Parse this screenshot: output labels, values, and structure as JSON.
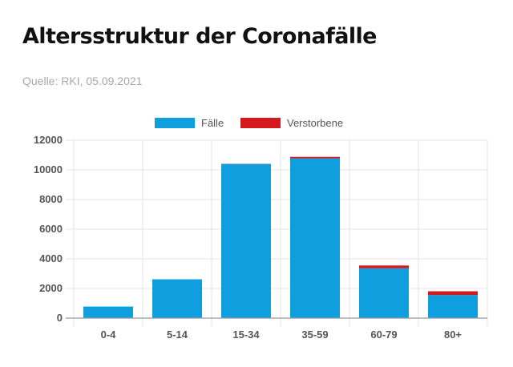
{
  "header": {
    "title": "Altersstruktur der Coronafälle",
    "source": "Quelle: RKI, 05.09.2021"
  },
  "colors": {
    "cases": "#0f9fde",
    "deaths": "#d51a1f",
    "grid": "#e6e6e6",
    "axis": "#999999",
    "text": "#555555"
  },
  "chart_data": {
    "type": "bar",
    "stacked": true,
    "categories": [
      "0-4",
      "5-14",
      "15-34",
      "35-59",
      "60-79",
      "80+"
    ],
    "series": [
      {
        "name": "Fälle",
        "color": "#0f9fde",
        "values": [
          780,
          2620,
          10400,
          10780,
          3360,
          1560
        ]
      },
      {
        "name": "Verstorbene",
        "color": "#d51a1f",
        "values": [
          0,
          0,
          10,
          100,
          190,
          250
        ]
      }
    ],
    "ylim": [
      0,
      12000
    ],
    "yticks": [
      0,
      2000,
      4000,
      6000,
      8000,
      10000,
      12000
    ],
    "grid": true,
    "legend": "top"
  }
}
